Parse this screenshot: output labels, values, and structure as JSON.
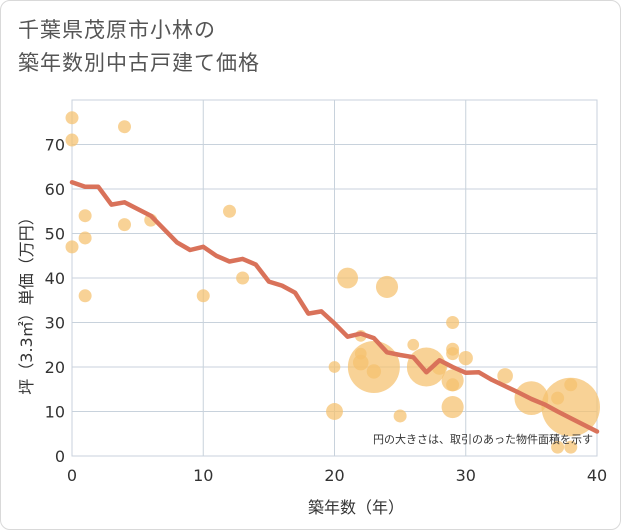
{
  "title_lines": [
    "千葉県茂原市小林の",
    "築年数別中古戸建て価格"
  ],
  "chart_data": {
    "type": "scatter",
    "xlabel": "築年数（年）",
    "ylabel": "坪（3.3㎡）単価（万円）",
    "xlim": [
      0,
      40
    ],
    "ylim": [
      0,
      80
    ],
    "xticks": [
      0,
      10,
      20,
      30,
      40
    ],
    "yticks": [
      0,
      10,
      20,
      30,
      40,
      50,
      60,
      70
    ],
    "grid": true,
    "note": "円の大きさは、取引のあった物件面積を示す",
    "colors": {
      "bubble": "#f5c06e",
      "trend": "#d9725a",
      "grid": "#c8d2dc"
    },
    "points": [
      {
        "x": 0,
        "y": 76,
        "s": 1
      },
      {
        "x": 0,
        "y": 71,
        "s": 1
      },
      {
        "x": 0,
        "y": 47,
        "s": 1
      },
      {
        "x": 1,
        "y": 54,
        "s": 1
      },
      {
        "x": 1,
        "y": 49,
        "s": 1
      },
      {
        "x": 1,
        "y": 36,
        "s": 1
      },
      {
        "x": 4,
        "y": 74,
        "s": 1
      },
      {
        "x": 4,
        "y": 52,
        "s": 1
      },
      {
        "x": 6,
        "y": 53,
        "s": 1
      },
      {
        "x": 10,
        "y": 36,
        "s": 1
      },
      {
        "x": 12,
        "y": 55,
        "s": 1
      },
      {
        "x": 13,
        "y": 40,
        "s": 1
      },
      {
        "x": 20,
        "y": 20,
        "s": 0.9
      },
      {
        "x": 20,
        "y": 10,
        "s": 1.3
      },
      {
        "x": 21,
        "y": 40,
        "s": 1.6
      },
      {
        "x": 22,
        "y": 27,
        "s": 0.9
      },
      {
        "x": 22,
        "y": 23,
        "s": 0.9
      },
      {
        "x": 22,
        "y": 21,
        "s": 1.2
      },
      {
        "x": 23,
        "y": 20,
        "s": 4.0
      },
      {
        "x": 23,
        "y": 19,
        "s": 1.1
      },
      {
        "x": 24,
        "y": 38,
        "s": 1.7
      },
      {
        "x": 25,
        "y": 9,
        "s": 1
      },
      {
        "x": 26,
        "y": 25,
        "s": 0.9
      },
      {
        "x": 27,
        "y": 20,
        "s": 3.0
      },
      {
        "x": 28,
        "y": 20,
        "s": 1.2
      },
      {
        "x": 29,
        "y": 30,
        "s": 1
      },
      {
        "x": 29,
        "y": 24,
        "s": 1
      },
      {
        "x": 29,
        "y": 23,
        "s": 1
      },
      {
        "x": 29,
        "y": 17,
        "s": 1.7
      },
      {
        "x": 29,
        "y": 16,
        "s": 1
      },
      {
        "x": 29,
        "y": 11,
        "s": 1.7
      },
      {
        "x": 30,
        "y": 22,
        "s": 1.1
      },
      {
        "x": 33,
        "y": 18,
        "s": 1.2
      },
      {
        "x": 35,
        "y": 13,
        "s": 2.6
      },
      {
        "x": 37,
        "y": 13,
        "s": 1
      },
      {
        "x": 37,
        "y": 2,
        "s": 1
      },
      {
        "x": 38,
        "y": 16,
        "s": 1
      },
      {
        "x": 38,
        "y": 11,
        "s": 4.5
      },
      {
        "x": 38,
        "y": 2,
        "s": 1
      }
    ],
    "trend": [
      {
        "x": 0,
        "y": 61.5
      },
      {
        "x": 1,
        "y": 60.5
      },
      {
        "x": 2,
        "y": 60.5
      },
      {
        "x": 3,
        "y": 56.5
      },
      {
        "x": 4,
        "y": 57
      },
      {
        "x": 5,
        "y": 55.5
      },
      {
        "x": 6,
        "y": 54
      },
      {
        "x": 7,
        "y": 51
      },
      {
        "x": 8,
        "y": 48
      },
      {
        "x": 9,
        "y": 46.3
      },
      {
        "x": 10,
        "y": 47
      },
      {
        "x": 11,
        "y": 45
      },
      {
        "x": 12,
        "y": 43.7
      },
      {
        "x": 13,
        "y": 44.3
      },
      {
        "x": 14,
        "y": 43
      },
      {
        "x": 15,
        "y": 39.2
      },
      {
        "x": 16,
        "y": 38.3
      },
      {
        "x": 17,
        "y": 36.7
      },
      {
        "x": 18,
        "y": 32
      },
      {
        "x": 19,
        "y": 32.5
      },
      {
        "x": 20,
        "y": 29.8
      },
      {
        "x": 21,
        "y": 26.8
      },
      {
        "x": 22,
        "y": 27.5
      },
      {
        "x": 23,
        "y": 26.5
      },
      {
        "x": 24,
        "y": 23.3
      },
      {
        "x": 25,
        "y": 22.7
      },
      {
        "x": 26,
        "y": 22.2
      },
      {
        "x": 27,
        "y": 18.8
      },
      {
        "x": 28,
        "y": 21.5
      },
      {
        "x": 29,
        "y": 20
      },
      {
        "x": 30,
        "y": 18.7
      },
      {
        "x": 31,
        "y": 18.8
      },
      {
        "x": 32,
        "y": 17.1
      },
      {
        "x": 33,
        "y": 15.7
      },
      {
        "x": 34,
        "y": 14.3
      },
      {
        "x": 35,
        "y": 12.8
      },
      {
        "x": 36,
        "y": 11.6
      },
      {
        "x": 37,
        "y": 10
      },
      {
        "x": 38,
        "y": 8.5
      },
      {
        "x": 39,
        "y": 7
      },
      {
        "x": 40,
        "y": 5.5
      }
    ]
  }
}
